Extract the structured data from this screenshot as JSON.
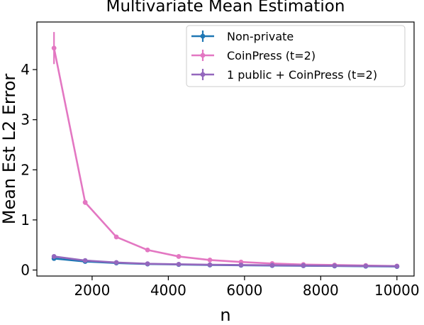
{
  "chart_data": {
    "type": "line",
    "title": "Multivariate Mean Estimation",
    "xlabel": "n",
    "ylabel": "Mean Est L2 Error",
    "xlim": [
      550,
      10450
    ],
    "ylim": [
      -0.12,
      4.95
    ],
    "xticks": [
      2000,
      4000,
      6000,
      8000,
      10000
    ],
    "yticks": [
      0,
      1,
      2,
      3,
      4
    ],
    "xtick_labels": [
      "2000",
      "4000",
      "6000",
      "8000",
      "10000"
    ],
    "ytick_labels": [
      "0",
      "1",
      "2",
      "3",
      "4"
    ],
    "legend_position": "top-right",
    "grid": false,
    "x": [
      1000,
      1818,
      2636,
      3455,
      4273,
      5091,
      5909,
      6727,
      7545,
      8364,
      9182,
      10000
    ],
    "series": [
      {
        "name": "Non-private",
        "color": "#1f77b4",
        "values": [
          0.23,
          0.17,
          0.14,
          0.12,
          0.11,
          0.1,
          0.095,
          0.09,
          0.085,
          0.08,
          0.075,
          0.07
        ],
        "errors": [
          0.02,
          0.01,
          0.01,
          0.005,
          0.005,
          0.005,
          0.005,
          0.005,
          0.005,
          0.005,
          0.005,
          0.005
        ]
      },
      {
        "name": "CoinPress (t=2)",
        "color": "#e377c2",
        "values": [
          4.43,
          1.35,
          0.66,
          0.4,
          0.27,
          0.2,
          0.16,
          0.13,
          0.11,
          0.1,
          0.09,
          0.08
        ],
        "errors": [
          0.32,
          0.05,
          0.02,
          0.015,
          0.01,
          0.01,
          0.005,
          0.005,
          0.005,
          0.005,
          0.005,
          0.005
        ]
      },
      {
        "name": "1 public + CoinPress (t=2)",
        "color": "#9467bd",
        "values": [
          0.27,
          0.19,
          0.15,
          0.125,
          0.115,
          0.105,
          0.1,
          0.095,
          0.09,
          0.085,
          0.08,
          0.075
        ],
        "errors": [
          0.02,
          0.01,
          0.01,
          0.005,
          0.005,
          0.005,
          0.005,
          0.005,
          0.005,
          0.005,
          0.005,
          0.005
        ]
      }
    ]
  }
}
